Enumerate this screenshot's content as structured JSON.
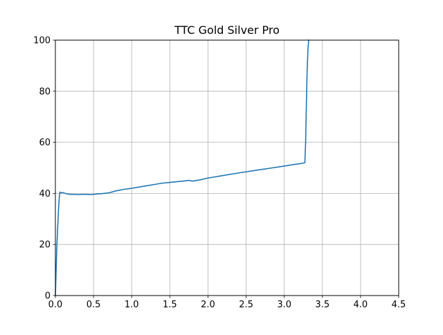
{
  "chart_data": {
    "type": "line",
    "title": "TTC Gold Silver Pro",
    "xlabel": "",
    "ylabel": "",
    "xlim": [
      0,
      4.5
    ],
    "ylim": [
      0,
      100
    ],
    "x_ticks": [
      "0.0",
      "0.5",
      "1.0",
      "1.5",
      "2.0",
      "2.5",
      "3.0",
      "3.5",
      "4.0",
      "4.5"
    ],
    "y_ticks": [
      "0",
      "20",
      "40",
      "60",
      "80",
      "100"
    ],
    "grid": true,
    "legend": "none",
    "series": [
      {
        "color": "#1f77b4",
        "x": [
          0.0,
          0.02,
          0.04,
          0.05,
          0.06,
          0.08,
          0.1,
          0.15,
          0.2,
          0.25,
          0.3,
          0.35,
          0.4,
          0.45,
          0.5,
          0.55,
          0.6,
          0.7,
          0.8,
          0.9,
          1.0,
          1.1,
          1.2,
          1.3,
          1.4,
          1.5,
          1.6,
          1.7,
          1.75,
          1.8,
          1.9,
          2.0,
          2.2,
          2.4,
          2.6,
          2.8,
          3.0,
          3.1,
          3.2,
          3.27,
          3.28,
          3.29,
          3.3,
          3.31,
          3.32
        ],
        "y": [
          0,
          20,
          33,
          38,
          40.5,
          40.2,
          40.3,
          39.8,
          39.6,
          39.6,
          39.5,
          39.6,
          39.6,
          39.5,
          39.6,
          39.8,
          39.9,
          40.2,
          41.0,
          41.6,
          42.0,
          42.5,
          43.0,
          43.5,
          44.0,
          44.3,
          44.6,
          44.9,
          45.1,
          44.8,
          45.3,
          46.0,
          47.0,
          48.0,
          48.9,
          49.8,
          50.7,
          51.2,
          51.6,
          52.0,
          60.0,
          75.0,
          88.0,
          96.0,
          100.0
        ]
      }
    ]
  }
}
